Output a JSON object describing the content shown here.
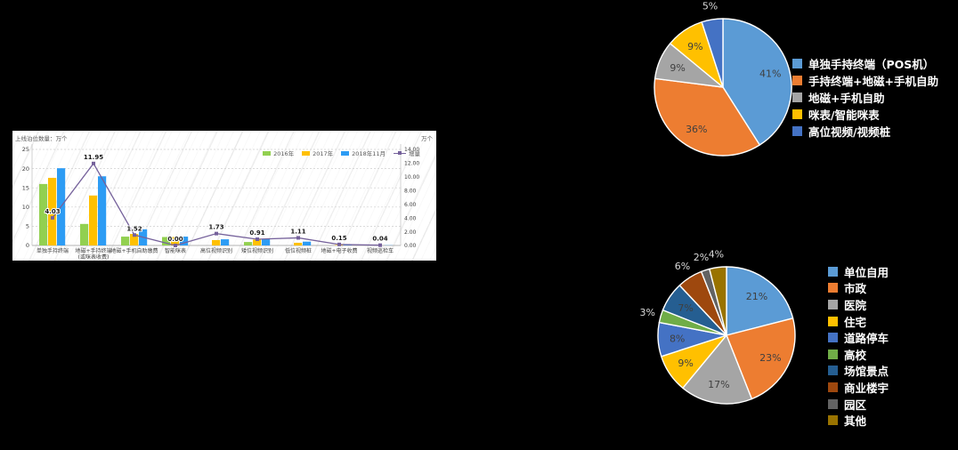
{
  "background_color": "#000000",
  "chart_data": [
    {
      "type": "bar+line",
      "panel_bg": "#ffffff",
      "axis_left": {
        "title": "上线泊位数量：万个",
        "ticks": [
          0,
          5,
          10,
          15,
          20,
          25
        ],
        "max": 25
      },
      "axis_right": {
        "title": "万个",
        "ticks": [
          0,
          2,
          4,
          6,
          8,
          10,
          12,
          14
        ],
        "max": 14
      },
      "grid": "dashed horizontal",
      "legend_position": "top-right-inside",
      "categories": [
        "单独手持终端",
        [
          "地磁+手持终端",
          "(或咪表收费)"
        ],
        "地磁+手机自助缴费",
        "智能咪表",
        "高位视频识别",
        "矮位视频识别",
        "低位视频桩",
        "地磁+电子收费",
        "视频巡检车"
      ],
      "series": [
        {
          "name": "2016年",
          "type": "bar",
          "color": "#92D050",
          "values": [
            16.0,
            5.6,
            2.3,
            2.2,
            0,
            0.9,
            0,
            0,
            0
          ]
        },
        {
          "name": "2017年",
          "type": "bar",
          "color": "#FFC000",
          "values": [
            17.6,
            13.0,
            3.0,
            2.2,
            1.4,
            1.5,
            0.7,
            0.12,
            0
          ]
        },
        {
          "name": "2018年11月",
          "type": "bar",
          "color": "#2D9CF4",
          "values": [
            20.1,
            18.0,
            4.2,
            2.3,
            1.6,
            1.6,
            1.0,
            0.18,
            0.05
          ]
        },
        {
          "name": "增量",
          "type": "line",
          "axis": "right",
          "color": "#75619B",
          "values": [
            4.03,
            11.95,
            1.52,
            0.0,
            1.73,
            0.91,
            1.11,
            0.15,
            0.04
          ],
          "labels": [
            "4.03",
            "11.95",
            "1.52",
            "0.00",
            "1.73",
            "0.91",
            "1.11",
            "0.15",
            "0.04"
          ]
        }
      ]
    },
    {
      "type": "pie",
      "legend_position": "right",
      "slices": [
        {
          "label": "单独手持终端（POS机）",
          "pct": 41,
          "display": "41%",
          "color": "#5B9BD5"
        },
        {
          "label": "手持终端+地磁+手机自助",
          "pct": 36,
          "display": "36%",
          "color": "#ED7D31"
        },
        {
          "label": "地磁+手机自助",
          "pct": 9,
          "display": "9%",
          "color": "#A5A5A5"
        },
        {
          "label": "咪表/智能咪表",
          "pct": 9,
          "display": "9%",
          "color": "#FFC000"
        },
        {
          "label": "高位视频/视频桩",
          "pct": 5,
          "display": "5%",
          "color": "#4472C4"
        }
      ]
    },
    {
      "type": "pie",
      "legend_position": "right",
      "slices": [
        {
          "label": "单位自用",
          "pct": 21,
          "display": "21%",
          "color": "#5B9BD5"
        },
        {
          "label": "市政",
          "pct": 23,
          "display": "23%",
          "color": "#ED7D31"
        },
        {
          "label": "医院",
          "pct": 17,
          "display": "17%",
          "color": "#A5A5A5"
        },
        {
          "label": "住宅",
          "pct": 9,
          "display": "9%",
          "color": "#FFC000"
        },
        {
          "label": "道路停车",
          "pct": 8,
          "display": "8%",
          "color": "#4472C4"
        },
        {
          "label": "高校",
          "pct": 3,
          "display": "3%",
          "color": "#70AD47"
        },
        {
          "label": "场馆景点",
          "pct": 7,
          "display": "7%",
          "color": "#255E91"
        },
        {
          "label": "商业楼宇",
          "pct": 6,
          "display": "6%",
          "color": "#9E480E"
        },
        {
          "label": "园区",
          "pct": 2,
          "display": "2%",
          "color": "#636363"
        },
        {
          "label": "其他",
          "pct": 4,
          "display": "4%",
          "color": "#997300"
        }
      ]
    }
  ]
}
